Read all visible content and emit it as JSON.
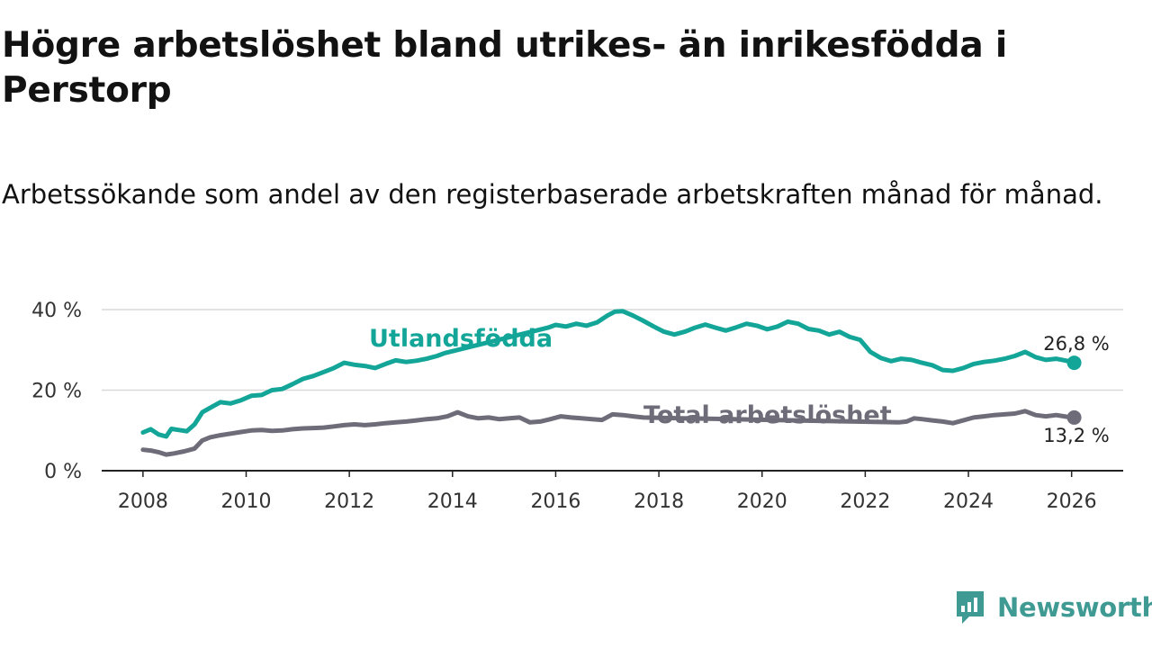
{
  "header": {
    "title": "Högre arbetslöshet bland utrikes- än inrikesfödda i Perstorp",
    "subtitle": "Arbetssökande som andel av den registerbaserade arbetskraften månad för månad."
  },
  "brand": {
    "name": "Newsworthy",
    "icon": "newsworthy-logo-icon",
    "color": "#3f9a93"
  },
  "chart_data": {
    "type": "line",
    "title": "Högre arbetslöshet bland utrikes- än inrikesfödda i Perstorp",
    "subtitle": "Arbetssökande som andel av den registerbaserade arbetskraften månad för månad.",
    "xlabel": "",
    "ylabel": "",
    "xlim": [
      2007.2,
      2027.0
    ],
    "ylim": [
      0,
      40
    ],
    "grid": true,
    "x_ticks": [
      2008,
      2010,
      2012,
      2014,
      2016,
      2018,
      2020,
      2022,
      2024,
      2026
    ],
    "x_tick_labels": [
      "2008",
      "2010",
      "2012",
      "2014",
      "2016",
      "2018",
      "2020",
      "2022",
      "2024",
      "2026"
    ],
    "y_ticks": [
      0,
      20,
      40
    ],
    "y_tick_labels": [
      "0 %",
      "20 %",
      "40 %"
    ],
    "series": [
      {
        "name": "Utlandsfödda",
        "color": "#13a598",
        "end_label": "26,8 %",
        "x": [
          2008.0,
          2008.15,
          2008.3,
          2008.45,
          2008.55,
          2008.7,
          2008.85,
          2009.0,
          2009.15,
          2009.3,
          2009.5,
          2009.7,
          2009.9,
          2010.1,
          2010.3,
          2010.5,
          2010.7,
          2010.9,
          2011.1,
          2011.3,
          2011.5,
          2011.7,
          2011.9,
          2012.1,
          2012.3,
          2012.5,
          2012.7,
          2012.9,
          2013.1,
          2013.3,
          2013.5,
          2013.7,
          2013.85,
          2015.85,
          2016.0,
          2016.2,
          2016.4,
          2016.6,
          2016.8,
          2017.0,
          2017.15,
          2017.3,
          2017.5,
          2017.7,
          2017.9,
          2018.1,
          2018.3,
          2018.5,
          2018.7,
          2018.9,
          2019.1,
          2019.3,
          2019.5,
          2019.7,
          2019.9,
          2020.1,
          2020.3,
          2020.5,
          2020.7,
          2020.9,
          2021.1,
          2021.3,
          2021.5,
          2021.7,
          2021.9,
          2022.1,
          2022.3,
          2022.5,
          2022.7,
          2022.9,
          2023.1,
          2023.3,
          2023.5,
          2023.7,
          2023.9,
          2024.1,
          2024.3,
          2024.5,
          2024.7,
          2024.9,
          2025.1,
          2025.3,
          2025.5,
          2025.7,
          2025.9,
          2026.05
        ],
        "y": [
          9.5,
          10.3,
          9.0,
          8.5,
          10.4,
          10.1,
          9.8,
          11.5,
          14.5,
          15.6,
          17.0,
          16.7,
          17.5,
          18.6,
          18.8,
          20.0,
          20.3,
          21.5,
          22.8,
          23.5,
          24.5,
          25.5,
          26.8,
          26.3,
          26.0,
          25.5,
          26.5,
          27.4,
          27.0,
          27.3,
          27.8,
          28.5,
          29.2,
          35.5,
          36.2,
          35.8,
          36.5,
          36.0,
          36.8,
          38.5,
          39.5,
          39.6,
          38.5,
          37.2,
          35.8,
          34.5,
          33.8,
          34.5,
          35.5,
          36.3,
          35.5,
          34.8,
          35.6,
          36.5,
          36.0,
          35.1,
          35.8,
          37.0,
          36.5,
          35.2,
          34.8,
          33.8,
          34.5,
          33.2,
          32.5,
          29.5,
          28.0,
          27.2,
          27.8,
          27.5,
          26.8,
          26.2,
          25.0,
          24.8,
          25.5,
          26.5,
          27.0,
          27.3,
          27.8,
          28.5,
          29.5,
          28.2,
          27.5,
          27.8,
          27.3,
          26.8
        ]
      },
      {
        "name": "Total arbetslöshet",
        "color": "#6d6c78",
        "end_label": "13,2 %",
        "x": [
          2008.0,
          2008.15,
          2008.3,
          2008.45,
          2008.6,
          2008.8,
          2009.0,
          2009.15,
          2009.3,
          2009.5,
          2009.7,
          2009.9,
          2010.1,
          2010.3,
          2010.5,
          2010.7,
          2010.9,
          2011.1,
          2011.3,
          2011.5,
          2011.7,
          2011.9,
          2012.1,
          2012.3,
          2012.5,
          2012.7,
          2012.9,
          2013.1,
          2013.3,
          2013.5,
          2013.7,
          2013.9,
          2014.1,
          2014.3,
          2014.5,
          2014.7,
          2014.9,
          2015.1,
          2015.3,
          2015.5,
          2015.7,
          2015.9,
          2016.1,
          2016.3,
          2016.5,
          2016.7,
          2016.9,
          2017.1,
          2017.3,
          2017.5,
          2017.7,
          2022.65,
          2022.8,
          2022.95,
          2023.1,
          2023.3,
          2023.5,
          2023.7,
          2023.9,
          2024.1,
          2024.3,
          2024.5,
          2024.7,
          2024.9,
          2025.1,
          2025.3,
          2025.5,
          2025.7,
          2025.9,
          2026.05
        ],
        "y": [
          5.2,
          5.0,
          4.6,
          4.0,
          4.3,
          4.8,
          5.5,
          7.5,
          8.3,
          8.8,
          9.2,
          9.6,
          10.0,
          10.1,
          9.9,
          10.0,
          10.3,
          10.5,
          10.6,
          10.7,
          11.0,
          11.3,
          11.5,
          11.3,
          11.5,
          11.8,
          12.0,
          12.2,
          12.5,
          12.8,
          13.0,
          13.5,
          14.5,
          13.5,
          13.0,
          13.2,
          12.8,
          13.0,
          13.2,
          12.0,
          12.2,
          12.8,
          13.5,
          13.2,
          13.0,
          12.8,
          12.6,
          14.0,
          13.8,
          13.5,
          13.2,
          12.0,
          12.2,
          13.0,
          12.8,
          12.5,
          12.2,
          11.8,
          12.5,
          13.2,
          13.5,
          13.8,
          14.0,
          14.2,
          14.8,
          13.8,
          13.5,
          13.8,
          13.4,
          13.2
        ]
      }
    ]
  }
}
